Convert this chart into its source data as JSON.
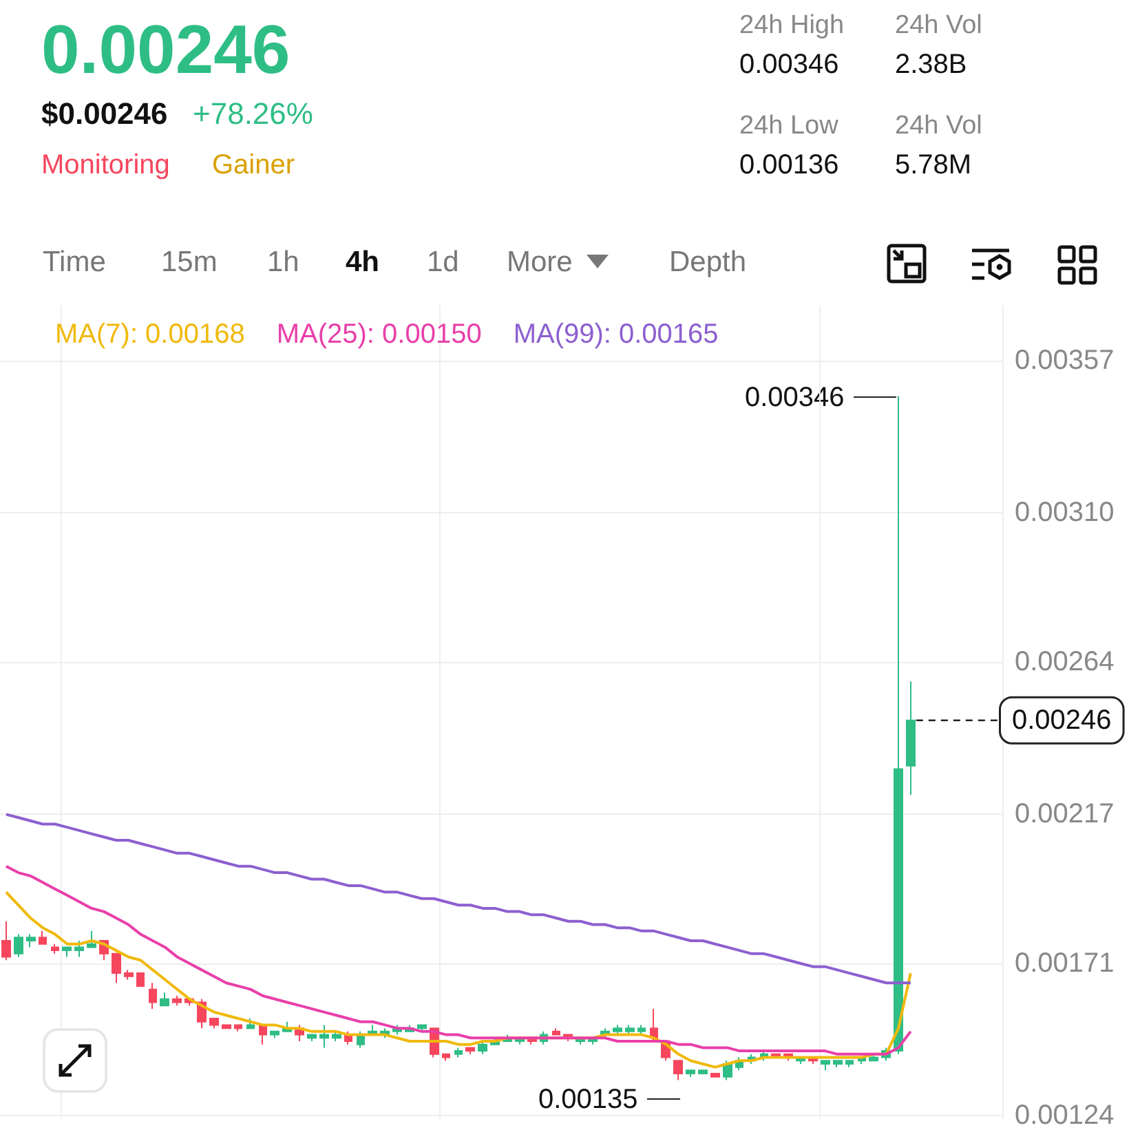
{
  "chart_data": {
    "type": "candlestick",
    "title": "0.00246",
    "subtitle": "$0.00246",
    "annotations": [
      "+78.26%",
      "Monitoring",
      "Gainer",
      "24h High",
      "0.00346",
      "24h Vol",
      "2.38B",
      "24h Low",
      "0.00136",
      "24h Vol",
      "5.78M",
      "Time",
      "15m",
      "1h",
      "4h",
      "1d",
      "More",
      "Depth",
      "0.00346",
      "0.00135"
    ],
    "categories": [
      null,
      null,
      null,
      null,
      null,
      null,
      null,
      null,
      null,
      null,
      null,
      null,
      null,
      null,
      null,
      null,
      null,
      null,
      null,
      null,
      null,
      null,
      null,
      null,
      null,
      null,
      null,
      null,
      null,
      null,
      null,
      null,
      null,
      null,
      null,
      null,
      null,
      null,
      null,
      null,
      null,
      null,
      null,
      null,
      null,
      null,
      null,
      null,
      null,
      null,
      null,
      null,
      null,
      null,
      null,
      null,
      null,
      null,
      null,
      null,
      null,
      null,
      null,
      null,
      null,
      null,
      null,
      null,
      null,
      null,
      null,
      null,
      null,
      null,
      null
    ],
    "ohlc": [
      [
        0.00178,
        0.00184,
        0.00172,
        0.00173
      ],
      [
        0.00174,
        0.0018,
        0.00173,
        0.00179
      ],
      [
        0.00178,
        0.0018,
        0.00176,
        0.00179
      ],
      [
        0.00179,
        0.00181,
        0.00177,
        0.00177
      ],
      [
        0.00176,
        0.00177,
        0.00174,
        0.00175
      ],
      [
        0.00175,
        0.00176,
        0.00173,
        0.00176
      ],
      [
        0.00175,
        0.00178,
        0.00173,
        0.00176
      ],
      [
        0.00176,
        0.00181,
        0.00176,
        0.00177
      ],
      [
        0.00178,
        0.00178,
        0.00172,
        0.00174
      ],
      [
        0.00174,
        0.00174,
        0.00165,
        0.00168
      ],
      [
        0.00168,
        0.00169,
        0.00166,
        0.00167
      ],
      [
        0.00168,
        0.00168,
        0.00164,
        0.00164
      ],
      [
        0.00163,
        0.00165,
        0.00157,
        0.00159
      ],
      [
        0.00158,
        0.00162,
        0.00158,
        0.0016
      ],
      [
        0.0016,
        0.00161,
        0.00158,
        0.00159
      ],
      [
        0.0016,
        0.0016,
        0.00158,
        0.00159
      ],
      [
        0.00159,
        0.0016,
        0.00151,
        0.00153
      ],
      [
        0.00154,
        0.00154,
        0.00151,
        0.00152
      ],
      [
        0.00152,
        0.00152,
        0.00151,
        0.00151
      ],
      [
        0.00152,
        0.00152,
        0.0015,
        0.00151
      ],
      [
        0.00151,
        0.00154,
        0.00151,
        0.00152
      ],
      [
        0.00152,
        0.00152,
        0.00146,
        0.00149
      ],
      [
        0.00149,
        0.0015,
        0.00148,
        0.0015
      ],
      [
        0.0015,
        0.00153,
        0.0015,
        0.00151
      ],
      [
        0.00151,
        0.00152,
        0.00147,
        0.00149
      ],
      [
        0.00148,
        0.00149,
        0.00147,
        0.00149
      ],
      [
        0.00148,
        0.00152,
        0.00145,
        0.00149
      ],
      [
        0.00148,
        0.0015,
        0.00147,
        0.00149
      ],
      [
        0.00149,
        0.0015,
        0.00146,
        0.00147
      ],
      [
        0.00146,
        0.0015,
        0.00145,
        0.00149
      ],
      [
        0.00149,
        0.00152,
        0.00149,
        0.0015
      ],
      [
        0.00149,
        0.00151,
        0.00148,
        0.0015
      ],
      [
        0.0015,
        0.00152,
        0.00149,
        0.00151
      ],
      [
        0.0015,
        0.00152,
        0.0015,
        0.00151
      ],
      [
        0.00151,
        0.00152,
        0.0015,
        0.00152
      ],
      [
        0.00151,
        0.00151,
        0.00142,
        0.00143
      ],
      [
        0.00143,
        0.00143,
        0.00141,
        0.00142
      ],
      [
        0.00143,
        0.00145,
        0.00142,
        0.00144
      ],
      [
        0.00145,
        0.00145,
        0.00143,
        0.00144
      ],
      [
        0.00144,
        0.00147,
        0.00143,
        0.00146
      ],
      [
        0.00146,
        0.00148,
        0.00146,
        0.00147
      ],
      [
        0.00147,
        0.00149,
        0.00147,
        0.00148
      ],
      [
        0.00147,
        0.00148,
        0.00146,
        0.00148
      ],
      [
        0.00148,
        0.00148,
        0.00146,
        0.00147
      ],
      [
        0.00147,
        0.0015,
        0.00146,
        0.00149
      ],
      [
        0.0015,
        0.00151,
        0.00149,
        0.00149
      ],
      [
        0.00149,
        0.00149,
        0.00147,
        0.00148
      ],
      [
        0.00147,
        0.00148,
        0.00146,
        0.00148
      ],
      [
        0.00147,
        0.00148,
        0.00146,
        0.00148
      ],
      [
        0.00149,
        0.00151,
        0.00148,
        0.0015
      ],
      [
        0.0015,
        0.00152,
        0.00149,
        0.00151
      ],
      [
        0.0015,
        0.00152,
        0.00149,
        0.00151
      ],
      [
        0.0015,
        0.00152,
        0.00149,
        0.00151
      ],
      [
        0.00151,
        0.00157,
        0.00147,
        0.00148
      ],
      [
        0.00147,
        0.00147,
        0.00141,
        0.00142
      ],
      [
        0.00141,
        0.00141,
        0.00135,
        0.00137
      ],
      [
        0.00137,
        0.00138,
        0.00136,
        0.00138
      ],
      [
        0.00137,
        0.00138,
        0.00137,
        0.00138
      ],
      [
        0.00137,
        0.00137,
        0.00136,
        0.00136
      ],
      [
        0.00136,
        0.00141,
        0.00135,
        0.0014
      ],
      [
        0.00139,
        0.00142,
        0.00138,
        0.00141
      ],
      [
        0.00141,
        0.00143,
        0.0014,
        0.00142
      ],
      [
        0.00142,
        0.00144,
        0.00141,
        0.00143
      ],
      [
        0.00143,
        0.00143,
        0.00142,
        0.00142
      ],
      [
        0.00143,
        0.00143,
        0.00141,
        0.00142
      ],
      [
        0.00141,
        0.00142,
        0.0014,
        0.00142
      ],
      [
        0.00142,
        0.00142,
        0.0014,
        0.00141
      ],
      [
        0.0014,
        0.00141,
        0.00138,
        0.00141
      ],
      [
        0.0014,
        0.00141,
        0.00139,
        0.00141
      ],
      [
        0.0014,
        0.00141,
        0.00139,
        0.00141
      ],
      [
        0.00141,
        0.00142,
        0.0014,
        0.00142
      ],
      [
        0.00141,
        0.00143,
        0.00141,
        0.00142
      ],
      [
        0.00142,
        0.00145,
        0.00141,
        0.00144
      ],
      [
        0.00144,
        0.00346,
        0.00143,
        0.00231
      ],
      [
        0.00232,
        0.00258,
        0.00223,
        0.00246
      ]
    ],
    "colors": [
      "#f6465d",
      "#2ebd85",
      "#2ebd85",
      "#f6465d",
      "#f6465d",
      "#2ebd85",
      "#2ebd85",
      "#2ebd85",
      "#f6465d",
      "#f6465d",
      "#f6465d",
      "#f6465d",
      "#f6465d",
      "#2ebd85",
      "#f6465d",
      "#f6465d",
      "#f6465d",
      "#f6465d",
      "#f6465d",
      "#f6465d",
      "#2ebd85",
      "#f6465d",
      "#2ebd85",
      "#2ebd85",
      "#f6465d",
      "#2ebd85",
      "#2ebd85",
      "#2ebd85",
      "#f6465d",
      "#2ebd85",
      "#2ebd85",
      "#2ebd85",
      "#2ebd85",
      "#2ebd85",
      "#2ebd85",
      "#f6465d",
      "#f6465d",
      "#2ebd85",
      "#f6465d",
      "#2ebd85",
      "#2ebd85",
      "#2ebd85",
      "#2ebd85",
      "#f6465d",
      "#2ebd85",
      "#f6465d",
      "#f6465d",
      "#2ebd85",
      "#2ebd85",
      "#2ebd85",
      "#2ebd85",
      "#2ebd85",
      "#2ebd85",
      "#f6465d",
      "#f6465d",
      "#f6465d",
      "#2ebd85",
      "#2ebd85",
      "#f6465d",
      "#2ebd85",
      "#2ebd85",
      "#2ebd85",
      "#2ebd85",
      "#f6465d",
      "#f6465d",
      "#2ebd85",
      "#f6465d",
      "#2ebd85",
      "#2ebd85",
      "#2ebd85",
      "#2ebd85",
      "#2ebd85",
      "#2ebd85",
      "#2ebd85",
      "#2ebd85"
    ],
    "series": [
      {
        "type": "line",
        "name": "MA(7): 0.00168",
        "color": "#f0b90b",
        "values": [
          0.00193,
          0.00189,
          0.00185,
          0.00182,
          0.0018,
          0.00177,
          0.00177,
          0.00178,
          0.00177,
          0.00175,
          0.00173,
          0.00172,
          0.00169,
          0.00166,
          0.00163,
          0.0016,
          0.00158,
          0.00156,
          0.00155,
          0.00154,
          0.00153,
          0.00152,
          0.00152,
          0.00151,
          0.00151,
          0.0015,
          0.0015,
          0.0015,
          0.00149,
          0.00149,
          0.00149,
          0.00149,
          0.00148,
          0.00147,
          0.00147,
          0.00147,
          0.00147,
          0.00146,
          0.00146,
          0.00147,
          0.00147,
          0.00148,
          0.00148,
          0.00148,
          0.00148,
          0.00148,
          0.00148,
          0.00148,
          0.00148,
          0.00149,
          0.00149,
          0.00149,
          0.00149,
          0.00148,
          0.00146,
          0.00143,
          0.00141,
          0.0014,
          0.00139,
          0.0014,
          0.00141,
          0.00141,
          0.00142,
          0.00142,
          0.00142,
          0.00142,
          0.00142,
          0.00142,
          0.00142,
          0.00142,
          0.00142,
          0.00143,
          0.00143,
          0.00151,
          0.00168
        ]
      },
      {
        "type": "line",
        "name": "MA(25): 0.00150",
        "color": "#e93fa9",
        "values": [
          0.00201,
          0.00199,
          0.00198,
          0.00196,
          0.00194,
          0.00192,
          0.0019,
          0.00188,
          0.00187,
          0.00185,
          0.00183,
          0.0018,
          0.00178,
          0.00176,
          0.00173,
          0.00171,
          0.00169,
          0.00167,
          0.00165,
          0.00164,
          0.00163,
          0.00161,
          0.0016,
          0.00159,
          0.00158,
          0.00157,
          0.00156,
          0.00155,
          0.00154,
          0.00153,
          0.00153,
          0.00152,
          0.00151,
          0.00151,
          0.0015,
          0.0015,
          0.00149,
          0.00149,
          0.00148,
          0.00148,
          0.00148,
          0.00148,
          0.00148,
          0.00148,
          0.00148,
          0.00148,
          0.00148,
          0.00148,
          0.00148,
          0.00148,
          0.00147,
          0.00147,
          0.00147,
          0.00147,
          0.00147,
          0.00146,
          0.00146,
          0.00145,
          0.00145,
          0.00145,
          0.00144,
          0.00144,
          0.00144,
          0.00144,
          0.00144,
          0.00144,
          0.00144,
          0.00144,
          0.00143,
          0.00143,
          0.00143,
          0.00143,
          0.00143,
          0.00145,
          0.0015
        ]
      },
      {
        "type": "line",
        "name": "MA(99): 0.00165",
        "color": "#8c5fd0",
        "values": [
          0.00217,
          0.00216,
          0.00215,
          0.00214,
          0.00214,
          0.00213,
          0.00212,
          0.00211,
          0.0021,
          0.00209,
          0.00209,
          0.00208,
          0.00207,
          0.00206,
          0.00205,
          0.00205,
          0.00204,
          0.00203,
          0.00202,
          0.00201,
          0.00201,
          0.002,
          0.00199,
          0.00199,
          0.00198,
          0.00197,
          0.00197,
          0.00196,
          0.00195,
          0.00195,
          0.00194,
          0.00193,
          0.00193,
          0.00192,
          0.00191,
          0.00191,
          0.0019,
          0.00189,
          0.00189,
          0.00188,
          0.00188,
          0.00187,
          0.00187,
          0.00186,
          0.00186,
          0.00185,
          0.00184,
          0.00184,
          0.00183,
          0.00183,
          0.00182,
          0.00182,
          0.00181,
          0.00181,
          0.0018,
          0.00179,
          0.00178,
          0.00178,
          0.00177,
          0.00176,
          0.00175,
          0.00174,
          0.00174,
          0.00173,
          0.00172,
          0.00171,
          0.0017,
          0.0017,
          0.00169,
          0.00168,
          0.00167,
          0.00166,
          0.00165,
          0.00165,
          0.00165
        ]
      }
    ],
    "ylim": [
      0.00123,
      0.00374
    ],
    "yticks": [
      0.00124,
      0.00171,
      0.00217,
      0.00264,
      {
        "value": 0.0031,
        "label": "0.00310"
      },
      0.00357
    ],
    "ref_lines": [
      {
        "axis": "y",
        "value": 0.00246,
        "label": "0.00246",
        "line_style": "dashed",
        "color": "#222222"
      }
    ],
    "grid": true,
    "legend": "top",
    "marker": "none",
    "tick_labels": "y"
  }
}
